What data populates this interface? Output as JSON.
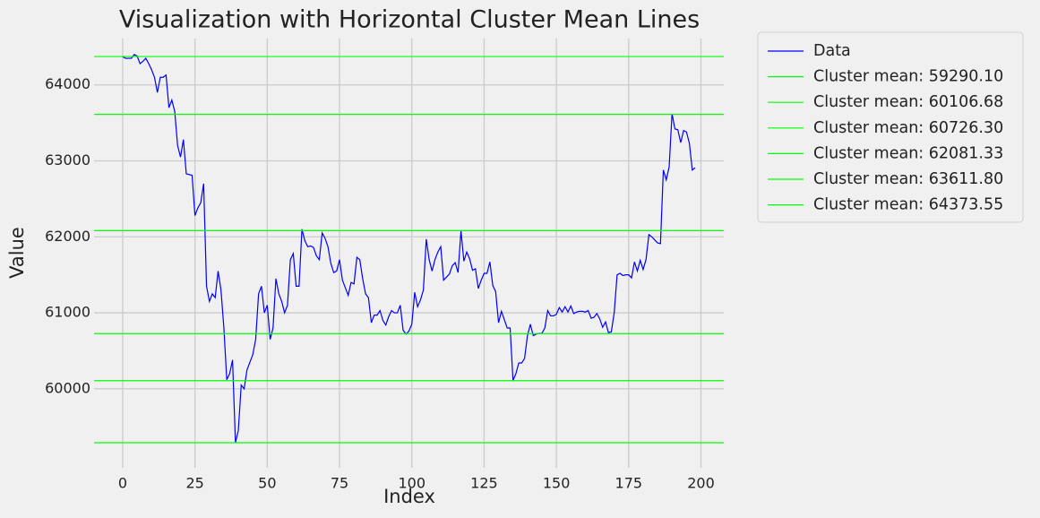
{
  "chart_data": {
    "type": "line",
    "title": "Visualization with Horizontal Cluster Mean Lines",
    "x_label": "Index",
    "y_label": "Value",
    "grid": true,
    "legend_position": "outside-upper-right",
    "xlim": [
      -9.9,
      207.9
    ],
    "ylim": [
      58960,
      64610
    ],
    "xticks": [
      0,
      25,
      50,
      75,
      100,
      125,
      150,
      175,
      200
    ],
    "yticks": [
      60000,
      61000,
      62000,
      63000,
      64000
    ],
    "x": [
      0,
      1,
      2,
      3,
      4,
      5,
      6,
      7,
      8,
      9,
      10,
      11,
      12,
      13,
      14,
      15,
      16,
      17,
      18,
      19,
      20,
      21,
      22,
      23,
      24,
      25,
      26,
      27,
      28,
      29,
      30,
      31,
      32,
      33,
      34,
      35,
      36,
      37,
      38,
      39,
      40,
      41,
      42,
      43,
      44,
      45,
      46,
      47,
      48,
      49,
      50,
      51,
      52,
      53,
      54,
      55,
      56,
      57,
      58,
      59,
      60,
      61,
      62,
      63,
      64,
      65,
      66,
      67,
      68,
      69,
      70,
      71,
      72,
      73,
      74,
      75,
      76,
      77,
      78,
      79,
      80,
      81,
      82,
      83,
      84,
      85,
      86,
      87,
      88,
      89,
      90,
      91,
      92,
      93,
      94,
      95,
      96,
      97,
      98,
      99,
      100,
      101,
      102,
      103,
      104,
      105,
      106,
      107,
      108,
      109,
      110,
      111,
      112,
      113,
      114,
      115,
      116,
      117,
      118,
      119,
      120,
      121,
      122,
      123,
      124,
      125,
      126,
      127,
      128,
      129,
      130,
      131,
      132,
      133,
      134,
      135,
      136,
      137,
      138,
      139,
      140,
      141,
      142,
      143,
      144,
      145,
      146,
      147,
      148,
      149,
      150,
      151,
      152,
      153,
      154,
      155,
      156,
      157,
      158,
      159,
      160,
      161,
      162,
      163,
      164,
      165,
      166,
      167,
      168,
      169,
      170,
      171,
      172,
      173,
      174,
      175,
      176,
      177,
      178,
      179,
      180,
      181,
      182,
      183,
      184,
      185,
      186,
      187,
      188,
      189,
      190,
      191,
      192,
      193,
      194,
      195,
      196,
      197,
      198
    ],
    "series": [
      {
        "name": "Data",
        "color": "#0000ff",
        "values": [
          64370,
          64350,
          64350,
          64350,
          64400,
          64380,
          64280,
          64310,
          64350,
          64280,
          64200,
          64100,
          63900,
          64100,
          64100,
          64130,
          63700,
          63800,
          63650,
          63200,
          63050,
          63280,
          62830,
          62820,
          62810,
          62280,
          62380,
          62450,
          62700,
          61350,
          61150,
          61250,
          61200,
          61550,
          61300,
          60800,
          60120,
          60200,
          60380,
          59290,
          59450,
          60050,
          60000,
          60250,
          60350,
          60450,
          60650,
          61250,
          61350,
          61000,
          61100,
          60650,
          60800,
          61450,
          61250,
          61150,
          61000,
          61100,
          61700,
          61780,
          61350,
          61350,
          62100,
          61950,
          61870,
          61880,
          61860,
          61750,
          61700,
          62050,
          61980,
          61870,
          61650,
          61530,
          61550,
          61700,
          61430,
          61330,
          61230,
          61400,
          61380,
          61730,
          61700,
          61450,
          61250,
          61200,
          60870,
          60970,
          60970,
          61030,
          60900,
          60840,
          60950,
          61030,
          61000,
          61000,
          61100,
          60770,
          60720,
          60760,
          60850,
          61270,
          61080,
          61170,
          61300,
          61970,
          61700,
          61550,
          61700,
          61800,
          61870,
          61430,
          61470,
          61510,
          61620,
          61660,
          61530,
          62080,
          61680,
          61800,
          61710,
          61560,
          61580,
          61320,
          61430,
          61520,
          61520,
          61670,
          61360,
          61280,
          60870,
          61020,
          60910,
          60800,
          60800,
          60110,
          60200,
          60340,
          60340,
          60400,
          60700,
          60850,
          60700,
          60720,
          60730,
          60730,
          60800,
          61030,
          60960,
          60960,
          60980,
          61070,
          61010,
          61080,
          61010,
          61090,
          60990,
          61010,
          61020,
          61020,
          61010,
          61030,
          60930,
          60940,
          60990,
          60920,
          60810,
          60880,
          60740,
          60750,
          61000,
          61500,
          61520,
          61490,
          61500,
          61500,
          61460,
          61670,
          61550,
          61690,
          61570,
          61700,
          62030,
          62000,
          61960,
          61920,
          61910,
          62880,
          62750,
          62920,
          63620,
          63420,
          63410,
          63240,
          63400,
          63380,
          63230,
          62880,
          62910
        ]
      }
    ],
    "hlines": [
      {
        "name": "Cluster mean: 59290.10",
        "value": 59290.1,
        "color": "#00ff00"
      },
      {
        "name": "Cluster mean: 60106.68",
        "value": 60106.68,
        "color": "#00ff00"
      },
      {
        "name": "Cluster mean: 60726.30",
        "value": 60726.3,
        "color": "#00ff00"
      },
      {
        "name": "Cluster mean: 62081.33",
        "value": 62081.33,
        "color": "#00ff00"
      },
      {
        "name": "Cluster mean: 63611.80",
        "value": 63611.8,
        "color": "#00ff00"
      },
      {
        "name": "Cluster mean: 64373.55",
        "value": 64373.55,
        "color": "#00ff00"
      }
    ]
  }
}
